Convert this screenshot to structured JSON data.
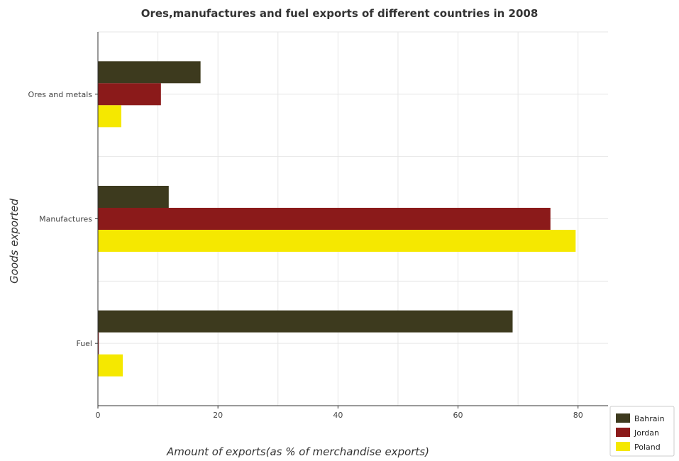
{
  "chart_data": {
    "type": "bar",
    "orientation": "horizontal",
    "title": "Ores,manufactures and fuel exports of different countries in 2008",
    "xlabel": "Amount of exports(as % of merchandise exports)",
    "ylabel": "Goods exported",
    "categories": [
      "Ores and metals",
      "Manufactures",
      "Fuel"
    ],
    "xlim": [
      0,
      85
    ],
    "xticks": [
      0,
      20,
      40,
      60,
      80
    ],
    "grid": true,
    "legend_position": "bottom-right",
    "series": [
      {
        "name": "Bahrain",
        "color": "#3d3a1e",
        "values": [
          17.1,
          11.8,
          69.1
        ]
      },
      {
        "name": "Jordan",
        "color": "#8b1a1a",
        "values": [
          10.5,
          75.4,
          0.15
        ]
      },
      {
        "name": "Poland",
        "color": "#f5e800",
        "values": [
          3.9,
          79.6,
          4.15
        ]
      }
    ]
  }
}
